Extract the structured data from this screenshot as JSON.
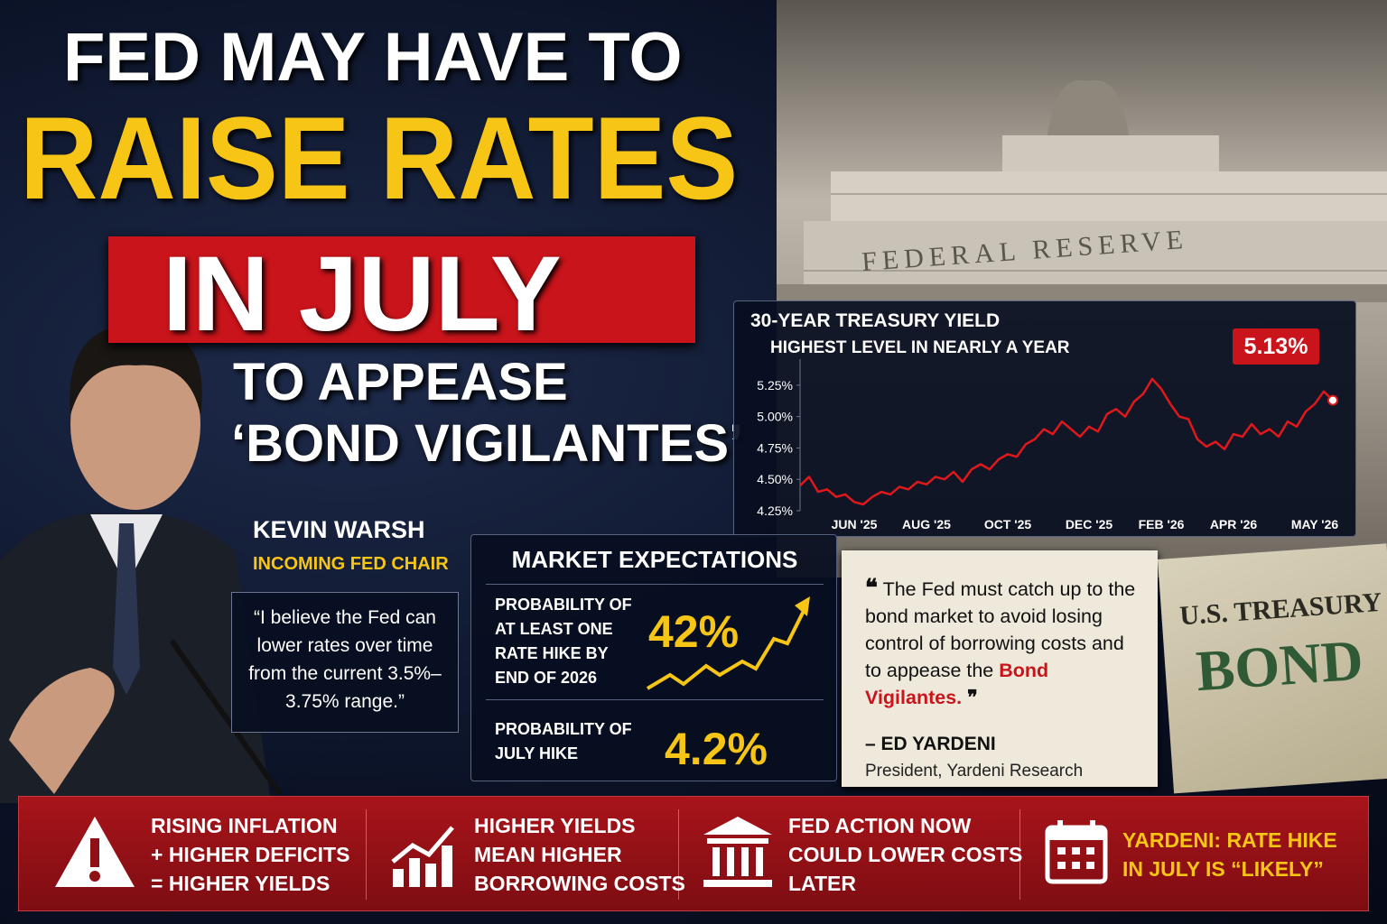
{
  "headline": {
    "line1": "FED MAY HAVE TO",
    "line2": "RAISE RATES",
    "line3": "IN JULY",
    "line4": "TO APPEASE",
    "line5": "‘BOND VIGILANTES’"
  },
  "building_inscription": "FEDERAL RESERVE",
  "person": {
    "name": "KEVIN WARSH",
    "role": "INCOMING FED CHAIR",
    "quote": "“I believe the Fed can lower rates over time from the current 3.5%–3.75% range.”"
  },
  "chart_data": {
    "type": "line",
    "title": "30-YEAR TREASURY YIELD",
    "subtitle": "HIGHEST LEVEL IN NEARLY A YEAR",
    "annotation": "5.13%",
    "color": "#e0181c",
    "categories": [
      null,
      null,
      null,
      null,
      null,
      null,
      "JUN '25",
      null,
      null,
      null,
      null,
      null,
      null,
      null,
      "AUG '25",
      null,
      null,
      null,
      null,
      null,
      null,
      null,
      null,
      "OCT '25",
      null,
      null,
      null,
      null,
      null,
      null,
      null,
      null,
      "DEC '25",
      null,
      null,
      null,
      null,
      null,
      null,
      null,
      "FEB '26",
      null,
      null,
      null,
      null,
      null,
      null,
      null,
      "APR '26",
      null,
      null,
      null,
      null,
      null,
      null,
      null,
      null,
      "MAY '26",
      null,
      null
    ],
    "values": [
      4.45,
      4.52,
      4.4,
      4.42,
      4.36,
      4.38,
      4.32,
      4.3,
      4.36,
      4.4,
      4.38,
      4.44,
      4.42,
      4.48,
      4.46,
      4.52,
      4.5,
      4.56,
      4.48,
      4.58,
      4.62,
      4.58,
      4.66,
      4.7,
      4.68,
      4.78,
      4.82,
      4.9,
      4.86,
      4.96,
      4.9,
      4.84,
      4.92,
      4.88,
      5.02,
      5.06,
      5.0,
      5.12,
      5.18,
      5.3,
      5.22,
      5.1,
      5.0,
      4.98,
      4.82,
      4.76,
      4.8,
      4.74,
      4.86,
      4.84,
      4.94,
      4.86,
      4.9,
      4.84,
      4.96,
      4.92,
      5.04,
      5.1,
      5.2,
      5.13
    ],
    "ylim": [
      4.25,
      5.4
    ],
    "yticks": [
      {
        "value": 4.25,
        "label": "4.25%"
      },
      {
        "value": 4.5,
        "label": "4.50%"
      },
      {
        "value": 4.75,
        "label": "4.75%"
      },
      {
        "value": 5,
        "label": "5.00%"
      },
      {
        "value": 5.25,
        "label": "5.25%"
      }
    ]
  },
  "market": {
    "title": "MARKET EXPECTATIONS",
    "items": [
      {
        "label": [
          "PROBABILITY OF",
          "AT LEAST ONE",
          "RATE HIKE BY",
          "END OF 2026"
        ],
        "value": "42%"
      },
      {
        "label": [
          "PROBABILITY OF",
          "JULY HIKE"
        ],
        "value": "4.2%"
      }
    ]
  },
  "yardeni": {
    "quote_open": "❝",
    "quote": "The Fed must catch up to the bond market to avoid losing control of borrowing costs and to appease the",
    "highlight": "Bond Vigilantes.",
    "quote_close": "❞",
    "attribution": "– ED YARDENI",
    "role": "President, Yardeni Research"
  },
  "bond_note": {
    "line1": "U.S. TREASURY",
    "line2": "BOND"
  },
  "footer": [
    {
      "lines": [
        "RISING INFLATION",
        "+ HIGHER DEFICITS",
        "= HIGHER YIELDS"
      ]
    },
    {
      "lines": [
        "HIGHER YIELDS",
        "MEAN HIGHER",
        "BORROWING COSTS"
      ]
    },
    {
      "lines": [
        "FED ACTION NOW",
        "COULD LOWER COSTS",
        "LATER"
      ]
    },
    {
      "lines": [
        "YARDENI: RATE HIKE",
        "IN JULY IS “LIKELY”"
      ]
    }
  ]
}
